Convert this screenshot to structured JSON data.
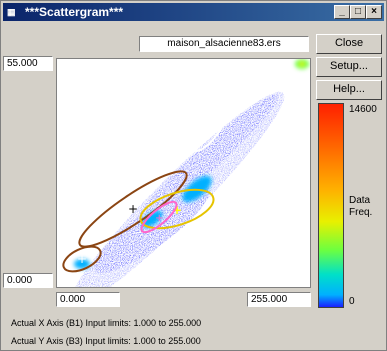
{
  "window": {
    "title": "***Scattergram***",
    "app_icon": "scattergram-app-icon",
    "controls": {
      "minimize": "_",
      "maximize": "□",
      "close": "×"
    }
  },
  "file_name": "maison_alsacienne83.ers",
  "y_axis": {
    "max_label": "55.000",
    "min_label": "0.000"
  },
  "x_axis": {
    "min_label": "0.000",
    "max_label": "255.000"
  },
  "buttons": {
    "close": "Close",
    "setup": "Setup...",
    "help": "Help..."
  },
  "legend": {
    "max_value": "14600",
    "min_value": "0",
    "label_line1": "Data",
    "label_line2": "Freq."
  },
  "status": {
    "x_limits": "Actual X Axis (B1) Input limits: 1.000 to 255.000",
    "y_limits": "Actual Y Axis (B3) Input limits: 1.000 to 255.000"
  },
  "colors": {
    "title_bar": "#0a246a",
    "window_bg": "#d4d0c8",
    "scatter_core": "#1a20ff",
    "scatter_mid": "#00b0ff",
    "scatter_high": "#6cff40",
    "ellipse_white": "#ffffff",
    "ellipse_brown": "#8b4513",
    "ellipse_yellow": "#e6c400",
    "ellipse_pink": "#ff66cc"
  }
}
